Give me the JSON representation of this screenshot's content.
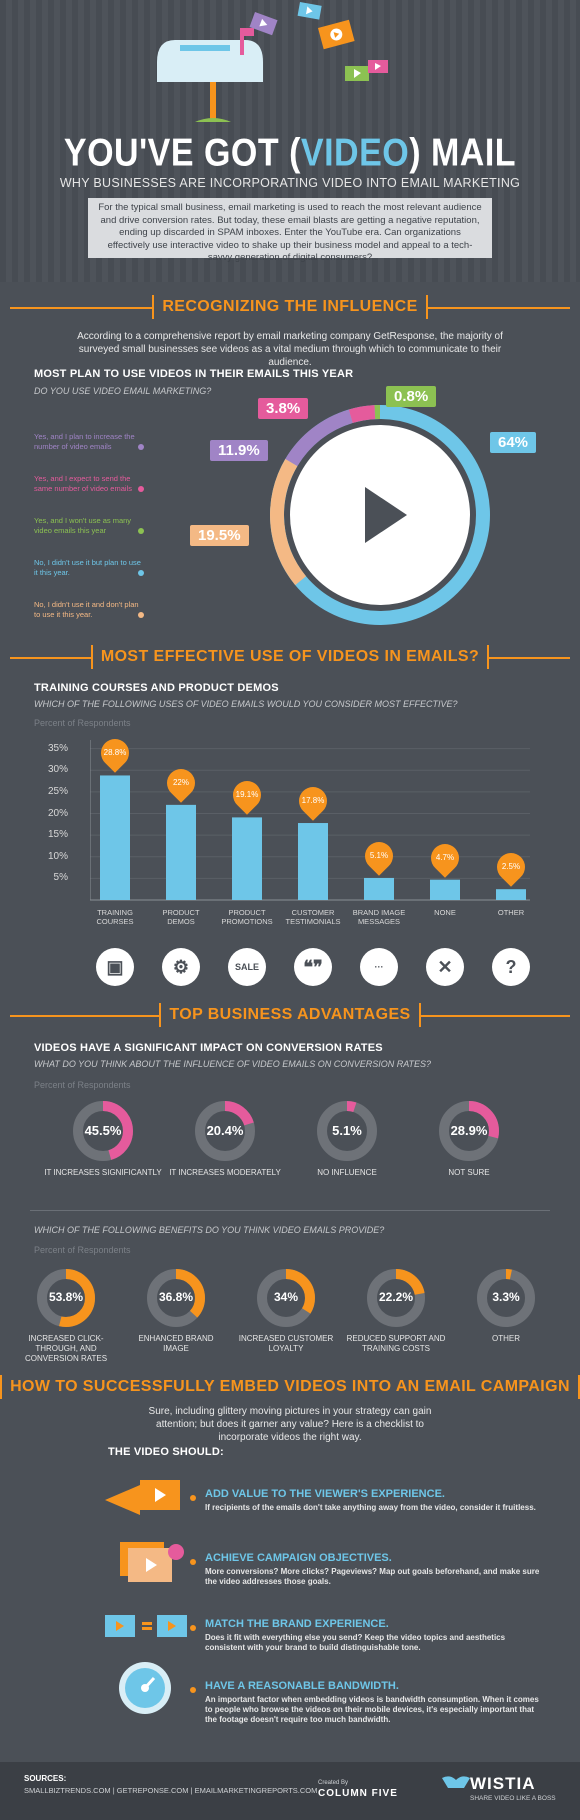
{
  "header": {
    "title_pre": "YOU'VE GOT (",
    "title_video": "VIDEO",
    "title_post": ") MAIL",
    "subtitle": "WHY BUSINESSES ARE INCORPORATING VIDEO INTO EMAIL MARKETING",
    "intro": "For the typical small business, email marketing is used to reach the most relevant audience and drive conversion rates. But today, these email blasts are getting a negative reputation, ending up discarded in SPAM inboxes. Enter the YouTube era. Can organizations effectively use interactive video to shake up their business model and appeal to a tech-savvy generation of digital consumers?"
  },
  "section1": {
    "title": "RECOGNIZING THE INFLUENCE",
    "body": "According to a comprehensive report by email marketing company GetResponse, the majority of surveyed small businesses see videos as a vital medium through which to communicate to their audience.",
    "heading": "MOST PLAN TO USE VIDEOS IN THEIR EMAILS THIS YEAR",
    "question": "DO YOU USE VIDEO EMAIL MARKETING?",
    "legend": [
      {
        "text": "Yes, and I plan to increase the number of video emails",
        "color": "#a084c6"
      },
      {
        "text": "Yes, and I expect to send the same number of video emails",
        "color": "#e55b9c"
      },
      {
        "text": "Yes, and I won't use as many video emails this year",
        "color": "#8cc152"
      },
      {
        "text": "No, I didn't use it but plan to use it this year.",
        "color": "#6ec6e8"
      },
      {
        "text": "No, I didn't use it and don't plan to use it this year.",
        "color": "#f4b985"
      }
    ],
    "pcts": {
      "p1": "3.8%",
      "p2": "0.8%",
      "p3": "11.9%",
      "p4": "64%",
      "p5": "19.5%"
    }
  },
  "section2": {
    "title": "MOST EFFECTIVE USE OF VIDEOS IN EMAILS?",
    "heading": "TRAINING COURSES AND PRODUCT DEMOS",
    "question": "WHICH OF THE FOLLOWING USES OF VIDEO EMAILS WOULD YOU CONSIDER MOST EFFECTIVE?",
    "resp_label": "Percent of Respondents",
    "axis": [
      "35%",
      "30%",
      "25%",
      "20%",
      "15%",
      "10%",
      "5%"
    ]
  },
  "chart_data": {
    "type": "bar",
    "categories": [
      "TRAINING COURSES",
      "PRODUCT DEMOS",
      "PRODUCT PROMOTIONS",
      "CUSTOMER TESTIMONIALS",
      "BRAND IMAGE MESSAGES",
      "NONE",
      "OTHER"
    ],
    "values": [
      28.8,
      22,
      19.1,
      17.8,
      5.1,
      4.7,
      2.5
    ],
    "labels": [
      "28.8%",
      "22%",
      "19.1%",
      "17.8%",
      "5.1%",
      "4.7%",
      "2.5%"
    ],
    "ylabel": "Percent of Respondents",
    "ylim": [
      0,
      37
    ]
  },
  "cat_lines": [
    [
      "TRAINING",
      "COURSES"
    ],
    [
      "PRODUCT",
      "DEMOS"
    ],
    [
      "PRODUCT",
      "PROMOTIONS"
    ],
    [
      "CUSTOMER",
      "TESTIMONIALS"
    ],
    [
      "BRAND IMAGE",
      "MESSAGES"
    ],
    [
      "NONE",
      ""
    ],
    [
      "OTHER",
      ""
    ]
  ],
  "cat_icons": [
    "▣",
    "⚙",
    "SALE",
    "❝❞",
    "···",
    "✕",
    "?"
  ],
  "section3": {
    "title": "TOP BUSINESS ADVANTAGES",
    "heading": "VIDEOS HAVE A SIGNIFICANT IMPACT ON CONVERSION RATES",
    "question": "WHAT DO YOU THINK ABOUT THE INFLUENCE OF VIDEO EMAILS ON CONVERSION RATES?",
    "resp_label": "Percent of Respondents",
    "influence": [
      {
        "value": 45.5,
        "label": "45.5%",
        "caption": "IT INCREASES SIGNIFICANTLY",
        "color": "#e55b9c"
      },
      {
        "value": 20.4,
        "label": "20.4%",
        "caption": "IT INCREASES MODERATELY",
        "color": "#e55b9c"
      },
      {
        "value": 5.1,
        "label": "5.1%",
        "caption": "NO INFLUENCE",
        "color": "#e55b9c"
      },
      {
        "value": 28.9,
        "label": "28.9%",
        "caption": "NOT SURE",
        "color": "#e55b9c"
      }
    ],
    "question2": "WHICH OF THE FOLLOWING BENEFITS DO YOU THINK VIDEO EMAILS PROVIDE?",
    "resp_label2": "Percent of Respondents",
    "benefits": [
      {
        "value": 53.8,
        "label": "53.8%",
        "caption": "INCREASED CLICK-THROUGH, AND CONVERSION RATES"
      },
      {
        "value": 36.8,
        "label": "36.8%",
        "caption": "ENHANCED BRAND IMAGE"
      },
      {
        "value": 34,
        "label": "34%",
        "caption": "INCREASED CUSTOMER LOYALTY"
      },
      {
        "value": 22.2,
        "label": "22.2%",
        "caption": "REDUCED SUPPORT AND TRAINING COSTS"
      },
      {
        "value": 3.3,
        "label": "3.3%",
        "caption": "OTHER"
      }
    ]
  },
  "section4": {
    "title": "HOW TO SUCCESSFULLY EMBED VIDEOS INTO AN EMAIL CAMPAIGN",
    "body": "Sure, including glittery moving pictures in your strategy can gain attention; but does it garner any value? Here is a checklist to incorporate videos the right way.",
    "heading": "THE VIDEO SHOULD:",
    "items": [
      {
        "title": "ADD VALUE TO THE VIEWER'S EXPERIENCE.",
        "body": "If recipients of the emails don't take anything away from the video, consider it fruitless."
      },
      {
        "title": "ACHIEVE CAMPAIGN OBJECTIVES.",
        "body": "More conversions? More clicks? Pageviews? Map out goals beforehand, and make sure the video addresses those goals."
      },
      {
        "title": "MATCH THE BRAND EXPERIENCE.",
        "body": "Does it fit with everything else you send? Keep the video topics and aesthetics consistent with your brand to build distinguishable tone."
      },
      {
        "title": "HAVE A REASONABLE BANDWIDTH.",
        "body": "An important factor when embedding videos is bandwidth consumption. When it comes to people who browse the videos on their mobile devices, it's especially important that the footage doesn't require too much bandwidth."
      }
    ]
  },
  "footer": {
    "sources_label": "SOURCES:",
    "sources": "SMALLBIZTRENDS.COM | GETREPONSE.COM | EMAILMARKETINGREPORTS.COM",
    "created_by": "Created By",
    "column_five": "COLUMN FIVE",
    "wistia": "WISTIA",
    "wistia_tag": "SHARE VIDEO LIKE A BOSS"
  },
  "colors": {
    "orange": "#f7941d",
    "blue": "#6ec6e8",
    "pink": "#e55b9c",
    "bg": "#4b5057"
  }
}
